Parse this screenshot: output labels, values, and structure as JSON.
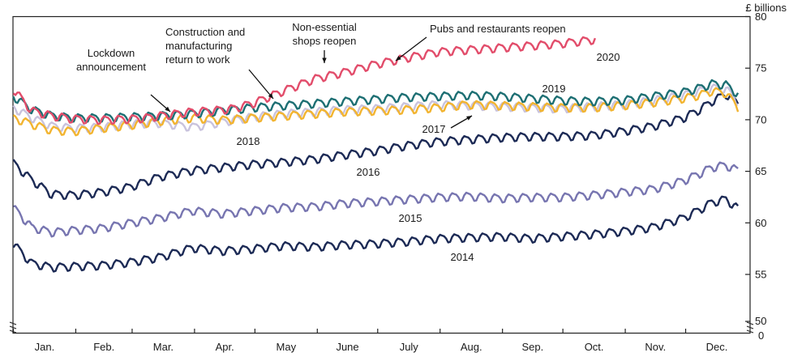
{
  "chart_data": {
    "type": "line",
    "ylabel": "£ billions",
    "ylim": [
      50,
      80
    ],
    "y_ticks_main": [
      55,
      60,
      65,
      70,
      75,
      80
    ],
    "y_ticks_break": [
      50,
      0
    ],
    "y_axis_break": true,
    "x_ticks": [
      "Jan.",
      "Feb.",
      "Mar.",
      "Apr.",
      "May",
      "June",
      "July",
      "Aug.",
      "Sep.",
      "Oct.",
      "Nov.",
      "Dec."
    ],
    "x_unit": "day of year",
    "grid": false,
    "series": [
      {
        "name": "2014",
        "color": "#1c2a55",
        "x": [
          1,
          10,
          20,
          31,
          45,
          59,
          74,
          90,
          105,
          120,
          135,
          151,
          165,
          181,
          196,
          212,
          227,
          243,
          258,
          273,
          288,
          304,
          319,
          334,
          342,
          348,
          355,
          361
        ],
        "y": [
          58,
          56.1,
          55.7,
          55.8,
          55.9,
          56.2,
          56.7,
          57.6,
          57.3,
          57.5,
          57.8,
          57.7,
          57.9,
          58.0,
          58.2,
          58.5,
          58.6,
          58.7,
          58.5,
          58.7,
          58.9,
          59.2,
          59.6,
          60.5,
          61.3,
          62.0,
          62.3,
          61.4
        ]
      },
      {
        "name": "2015",
        "color": "#7775b0",
        "x": [
          1,
          10,
          20,
          31,
          45,
          59,
          74,
          90,
          105,
          120,
          135,
          151,
          165,
          181,
          196,
          212,
          227,
          243,
          258,
          273,
          288,
          304,
          319,
          334,
          342,
          348,
          355,
          361
        ],
        "y": [
          61.5,
          59.6,
          59.1,
          59.3,
          59.5,
          60.0,
          60.5,
          61.2,
          60.9,
          61.2,
          61.5,
          61.6,
          61.9,
          62.1,
          62.3,
          62.5,
          62.6,
          62.4,
          62.5,
          62.5,
          62.7,
          63.0,
          63.3,
          64.1,
          64.8,
          65.4,
          65.6,
          65.1
        ]
      },
      {
        "name": "2016",
        "color": "#1c2a55",
        "x": [
          1,
          10,
          20,
          31,
          45,
          59,
          74,
          90,
          105,
          120,
          135,
          151,
          165,
          181,
          196,
          212,
          227,
          243,
          258,
          273,
          288,
          304,
          319,
          334,
          342,
          348,
          355,
          361
        ],
        "y": [
          65.8,
          64.2,
          62.8,
          62.7,
          63.0,
          63.5,
          64.5,
          65.1,
          65.4,
          65.7,
          65.9,
          66.2,
          66.6,
          67.0,
          67.5,
          67.9,
          68.1,
          68.3,
          68.4,
          68.4,
          68.5,
          68.9,
          69.4,
          70.2,
          71.0,
          71.8,
          72.5,
          71.6
        ]
      },
      {
        "name": "2017",
        "color": "#f2b430",
        "x": [
          1,
          10,
          20,
          31,
          45,
          59,
          74,
          90,
          105,
          120,
          135,
          151,
          165,
          181,
          196,
          212,
          227,
          243,
          258,
          273,
          288,
          304,
          319,
          334,
          342,
          348,
          355,
          361
        ],
        "y": [
          70.2,
          69.6,
          69.0,
          68.9,
          69.2,
          69.5,
          69.9,
          70.2,
          70.0,
          70.2,
          70.4,
          70.6,
          70.8,
          70.9,
          71.0,
          71.2,
          71.5,
          71.4,
          71.3,
          71.2,
          71.2,
          71.4,
          71.7,
          72.1,
          72.4,
          72.8,
          72.6,
          71.2
        ]
      },
      {
        "name": "2018",
        "color": "#c9c3dd",
        "x": [
          1,
          10,
          20,
          31,
          45,
          59,
          74,
          90,
          105,
          120,
          135,
          151,
          165,
          181,
          196,
          212,
          227,
          243,
          258,
          273,
          288,
          304,
          319,
          334,
          342,
          348,
          355,
          361
        ],
        "y": [
          71.2,
          70.2,
          69.4,
          69.2,
          69.3,
          69.6,
          69.7,
          69.3,
          69.8,
          70.3,
          70.6,
          70.8,
          71.0,
          71.1,
          71.3,
          71.5,
          71.4,
          71.3,
          71.2,
          71.1,
          71.3,
          71.5,
          71.9,
          72.4,
          72.8,
          73.1,
          73.0,
          71.8
        ]
      },
      {
        "name": "2019",
        "color": "#1d6f73",
        "x": [
          1,
          10,
          20,
          31,
          45,
          59,
          74,
          90,
          105,
          120,
          135,
          151,
          165,
          181,
          196,
          212,
          227,
          243,
          258,
          273,
          288,
          304,
          319,
          334,
          342,
          348,
          355,
          361
        ],
        "y": [
          72.3,
          71.0,
          70.4,
          70.2,
          70.2,
          70.3,
          70.4,
          70.6,
          70.9,
          71.2,
          71.4,
          71.6,
          71.8,
          72.0,
          72.2,
          72.3,
          72.4,
          72.3,
          72.1,
          71.9,
          71.8,
          71.9,
          72.3,
          72.7,
          73.1,
          73.5,
          73.4,
          72.5
        ]
      },
      {
        "name": "2020",
        "color": "#e24d6b",
        "x": [
          1,
          10,
          20,
          31,
          45,
          59,
          67,
          74,
          82,
          90,
          100,
          110,
          120,
          135,
          151,
          165,
          181,
          196,
          212,
          227,
          243,
          258,
          273,
          290
        ],
        "y": [
          73,
          70.9,
          70.4,
          70.1,
          70.0,
          70.1,
          70.2,
          70.4,
          70.6,
          70.8,
          70.9,
          71.1,
          71.6,
          72.8,
          74.0,
          74.6,
          75.4,
          76.0,
          76.6,
          76.8,
          77.0,
          77.2,
          77.4,
          77.8
        ]
      }
    ],
    "series_labels": [
      {
        "series": "2014",
        "text": "2014"
      },
      {
        "series": "2015",
        "text": "2015"
      },
      {
        "series": "2016",
        "text": "2016"
      },
      {
        "series": "2017",
        "text": "2017"
      },
      {
        "series": "2018",
        "text": "2018"
      },
      {
        "series": "2019",
        "text": "2019"
      },
      {
        "series": "2020",
        "text": "2020"
      }
    ],
    "annotations": [
      {
        "lines": [
          "Lockdown",
          "announcement"
        ]
      },
      {
        "lines": [
          "Construction and",
          "manufacturing",
          "return to work"
        ]
      },
      {
        "lines": [
          "Non-essential",
          "shops reopen"
        ]
      },
      {
        "lines": [
          "Pubs and restaurants reopen"
        ]
      }
    ]
  }
}
